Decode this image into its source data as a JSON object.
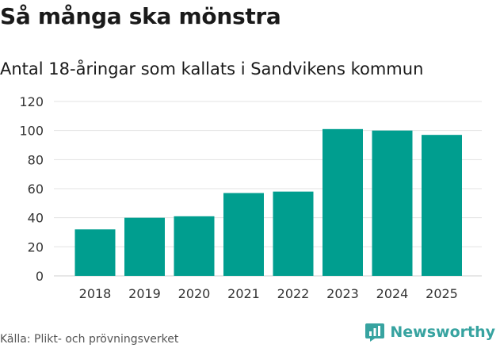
{
  "header": {
    "title": "Så många ska mönstra",
    "subtitle": "Antal 18-åringar som kallats i Sandvikens kommun"
  },
  "footer": {
    "source": "Källa: Plikt- och prövningsverket",
    "brand_name": "Newsworthy",
    "brand_icon": "chat-bubble-chart-icon",
    "brand_color": "#37a3a0"
  },
  "colors": {
    "bar": "#009e8f",
    "grid": "#e3e3e3",
    "axis_text": "#333333"
  },
  "chart_data": {
    "type": "bar",
    "title": "Så många ska mönstra",
    "subtitle": "Antal 18-åringar som kallats i Sandvikens kommun",
    "xlabel": "",
    "ylabel": "",
    "categories": [
      "2018",
      "2019",
      "2020",
      "2021",
      "2022",
      "2023",
      "2024",
      "2025"
    ],
    "values": [
      32,
      40,
      41,
      57,
      58,
      101,
      100,
      97
    ],
    "ylim": [
      0,
      120
    ],
    "yticks": [
      "0",
      "20",
      "40",
      "60",
      "80",
      "100",
      "120"
    ],
    "grid": true,
    "legend": "none"
  }
}
